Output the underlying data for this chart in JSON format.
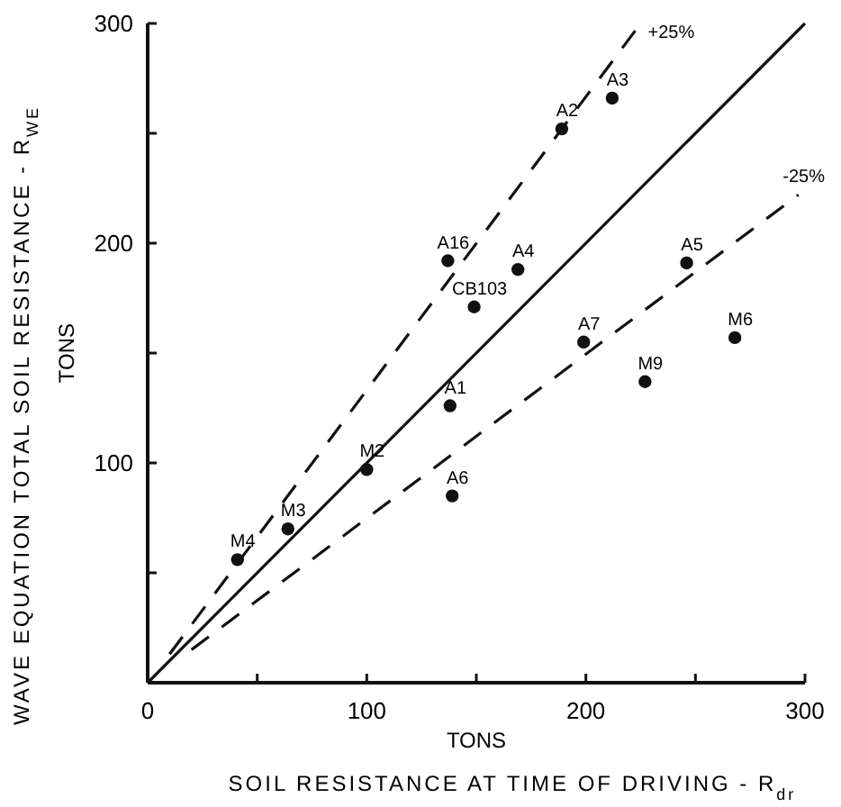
{
  "chart_data": {
    "type": "scatter",
    "xlabel": "SOIL RESISTANCE AT TIME OF DRIVING - R$_{dr}$",
    "ylabel": "WAVE EQUATION TOTAL SOIL RESISTANCE - R$_{WE}$",
    "xlim": [
      0,
      300
    ],
    "ylim": [
      0,
      300
    ],
    "xticks": [
      0,
      {
        "value": 50,
        "label": null
      },
      100,
      {
        "value": 150,
        "label": null
      },
      200,
      {
        "value": 250,
        "label": null
      },
      300
    ],
    "yticks": [
      {
        "value": 50,
        "label": null
      },
      100,
      {
        "value": 150,
        "label": null
      },
      200,
      {
        "value": 250,
        "label": null
      },
      300
    ],
    "tick_labels": true,
    "grid": false,
    "marker": "circle",
    "series": [
      {
        "color": "#111111",
        "x": [
          212,
          189,
          137,
          169,
          149,
          246,
          199,
          268,
          227,
          138,
          100,
          139,
          64,
          41
        ],
        "values": [
          266,
          252,
          192,
          188,
          171,
          191,
          155,
          157,
          137,
          126,
          97,
          85,
          70,
          56
        ]
      },
      {
        "type": "line",
        "color": "#111111",
        "line_style": "solid",
        "marker": "none",
        "x": [
          0,
          300
        ],
        "values": [
          0,
          300
        ]
      },
      {
        "type": "line",
        "color": "#111111",
        "line_style": "dashed",
        "marker": "none",
        "x": [
          10,
          225
        ],
        "values": [
          13,
          300
        ]
      },
      {
        "type": "line",
        "color": "#111111",
        "line_style": "dashed",
        "marker": "none",
        "x": [
          20,
          297
        ],
        "values": [
          15,
          222
        ]
      }
    ],
    "annotations": [
      {
        "text": "A3",
        "x": 212,
        "y": 266
      },
      {
        "text": "A2",
        "x": 189,
        "y": 252
      },
      {
        "text": "A16",
        "x": 137,
        "y": 192
      },
      {
        "text": "A4",
        "x": 169,
        "y": 188
      },
      {
        "text": "CB103",
        "x": 149,
        "y": 171
      },
      {
        "text": "A5",
        "x": 246,
        "y": 191
      },
      {
        "text": "A7",
        "x": 199,
        "y": 155
      },
      {
        "text": "M6",
        "x": 268,
        "y": 157
      },
      {
        "text": "M9",
        "x": 227,
        "y": 137
      },
      {
        "text": "A1",
        "x": 138,
        "y": 126
      },
      {
        "text": "M2",
        "x": 100,
        "y": 97
      },
      {
        "text": "A6",
        "x": 139,
        "y": 85
      },
      {
        "text": "M3",
        "x": 64,
        "y": 70
      },
      {
        "text": "M4",
        "x": 41,
        "y": 56
      },
      {
        "text": "+25%",
        "x": 225,
        "y": 300
      },
      {
        "text": "-25%",
        "x": 297,
        "y": 222
      },
      "TONS",
      "TONS"
    ]
  }
}
